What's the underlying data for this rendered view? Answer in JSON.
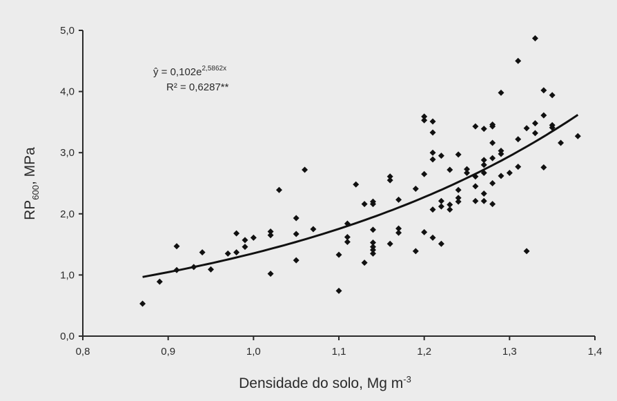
{
  "chart_data": {
    "type": "scatter",
    "title": "",
    "xlabel": {
      "main": "Densidade do solo, Mg m",
      "sup": "-3"
    },
    "ylabel": {
      "main": "RP",
      "sub": "600",
      "rest": ", MPa"
    },
    "xlim": [
      0.8,
      1.4
    ],
    "ylim": [
      0.0,
      5.0
    ],
    "x_ticks": [
      0.8,
      0.9,
      1.0,
      1.1,
      1.2,
      1.3,
      1.4
    ],
    "x_tick_labels": [
      "0,8",
      "0,9",
      "1,0",
      "1,1",
      "1,2",
      "1,3",
      "1,4"
    ],
    "y_ticks": [
      0.0,
      1.0,
      2.0,
      3.0,
      4.0,
      5.0
    ],
    "y_tick_labels": [
      "0,0",
      "1,0",
      "2,0",
      "3,0",
      "4,0",
      "5,0"
    ],
    "grid": false,
    "annotation": {
      "equation_prefix": "ŷ = 0,102e",
      "equation_exponent": "2,5862x",
      "r_squared": "R² = 0,6287**"
    },
    "trendline": {
      "a": 0.102,
      "b": 2.5862,
      "x_range": [
        0.87,
        1.38
      ]
    },
    "points": [
      [
        0.87,
        0.53
      ],
      [
        0.89,
        0.89
      ],
      [
        0.91,
        1.47
      ],
      [
        0.91,
        1.08
      ],
      [
        0.93,
        1.13
      ],
      [
        0.94,
        1.37
      ],
      [
        0.95,
        1.09
      ],
      [
        0.97,
        1.35
      ],
      [
        0.98,
        1.68
      ],
      [
        0.98,
        1.37
      ],
      [
        0.99,
        1.46
      ],
      [
        0.99,
        1.57
      ],
      [
        1.0,
        1.61
      ],
      [
        1.02,
        1.71
      ],
      [
        1.02,
        1.65
      ],
      [
        1.02,
        1.02
      ],
      [
        1.03,
        2.39
      ],
      [
        1.05,
        1.93
      ],
      [
        1.05,
        1.67
      ],
      [
        1.05,
        1.24
      ],
      [
        1.06,
        2.72
      ],
      [
        1.07,
        1.75
      ],
      [
        1.1,
        1.33
      ],
      [
        1.1,
        0.74
      ],
      [
        1.11,
        1.84
      ],
      [
        1.11,
        1.62
      ],
      [
        1.11,
        1.54
      ],
      [
        1.12,
        2.48
      ],
      [
        1.13,
        2.16
      ],
      [
        1.13,
        1.2
      ],
      [
        1.14,
        2.2
      ],
      [
        1.14,
        2.16
      ],
      [
        1.14,
        1.74
      ],
      [
        1.14,
        1.53
      ],
      [
        1.14,
        1.46
      ],
      [
        1.14,
        1.41
      ],
      [
        1.14,
        1.35
      ],
      [
        1.16,
        2.61
      ],
      [
        1.16,
        2.55
      ],
      [
        1.16,
        1.51
      ],
      [
        1.17,
        2.23
      ],
      [
        1.17,
        1.76
      ],
      [
        1.17,
        1.69
      ],
      [
        1.19,
        2.41
      ],
      [
        1.19,
        1.39
      ],
      [
        1.2,
        3.59
      ],
      [
        1.2,
        3.53
      ],
      [
        1.2,
        2.65
      ],
      [
        1.2,
        1.7
      ],
      [
        1.21,
        3.51
      ],
      [
        1.21,
        3.33
      ],
      [
        1.21,
        3.0
      ],
      [
        1.21,
        2.89
      ],
      [
        1.21,
        2.07
      ],
      [
        1.21,
        1.61
      ],
      [
        1.22,
        2.95
      ],
      [
        1.22,
        2.21
      ],
      [
        1.22,
        2.12
      ],
      [
        1.22,
        1.51
      ],
      [
        1.23,
        2.72
      ],
      [
        1.23,
        2.15
      ],
      [
        1.23,
        2.07
      ],
      [
        1.24,
        2.97
      ],
      [
        1.24,
        2.39
      ],
      [
        1.24,
        2.26
      ],
      [
        1.24,
        2.2
      ],
      [
        1.25,
        2.73
      ],
      [
        1.25,
        2.67
      ],
      [
        1.26,
        3.43
      ],
      [
        1.26,
        2.61
      ],
      [
        1.26,
        2.45
      ],
      [
        1.26,
        2.21
      ],
      [
        1.27,
        3.39
      ],
      [
        1.27,
        2.88
      ],
      [
        1.27,
        2.8
      ],
      [
        1.27,
        2.67
      ],
      [
        1.27,
        2.33
      ],
      [
        1.27,
        2.21
      ],
      [
        1.28,
        3.46
      ],
      [
        1.28,
        3.43
      ],
      [
        1.28,
        3.16
      ],
      [
        1.28,
        2.91
      ],
      [
        1.28,
        2.5
      ],
      [
        1.28,
        2.16
      ],
      [
        1.29,
        3.98
      ],
      [
        1.29,
        3.03
      ],
      [
        1.29,
        2.98
      ],
      [
        1.29,
        2.62
      ],
      [
        1.3,
        2.67
      ],
      [
        1.31,
        4.5
      ],
      [
        1.31,
        3.22
      ],
      [
        1.31,
        2.77
      ],
      [
        1.32,
        3.4
      ],
      [
        1.32,
        1.39
      ],
      [
        1.33,
        4.87
      ],
      [
        1.33,
        3.48
      ],
      [
        1.33,
        3.32
      ],
      [
        1.34,
        4.02
      ],
      [
        1.34,
        3.61
      ],
      [
        1.34,
        2.76
      ],
      [
        1.35,
        3.94
      ],
      [
        1.35,
        3.45
      ],
      [
        1.35,
        3.41
      ],
      [
        1.36,
        3.16
      ],
      [
        1.38,
        3.27
      ]
    ]
  }
}
